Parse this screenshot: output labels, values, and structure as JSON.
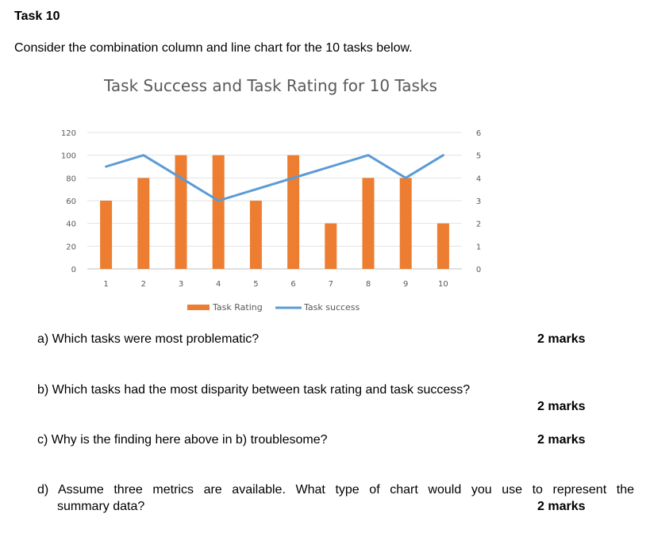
{
  "task_heading": "Task 10",
  "intro": "Consider the combination column and line chart for the 10 tasks below.",
  "chart_data": {
    "type": "bar+line",
    "title": "Task Success and Task Rating for 10 Tasks",
    "categories": [
      "1",
      "2",
      "3",
      "4",
      "5",
      "6",
      "7",
      "8",
      "9",
      "10"
    ],
    "series": [
      {
        "name": "Task Rating",
        "type": "bar",
        "axis": "left",
        "values": [
          60,
          80,
          100,
          100,
          60,
          100,
          40,
          80,
          80,
          40
        ],
        "color": "#ED7D31"
      },
      {
        "name": "Task success",
        "type": "line",
        "axis": "right",
        "values": [
          4.5,
          5,
          4,
          3,
          3.5,
          4,
          4.5,
          5,
          4,
          5
        ],
        "color": "#5B9BD5"
      }
    ],
    "left_axis": {
      "ylim": [
        0,
        120
      ],
      "ticks": [
        "0",
        "20",
        "40",
        "60",
        "80",
        "100",
        "120"
      ]
    },
    "right_axis": {
      "ylim": [
        0,
        6
      ],
      "ticks": [
        "0",
        "1",
        "2",
        "3",
        "4",
        "5",
        "6"
      ]
    },
    "grid": true,
    "legend": "bottom"
  },
  "questions": [
    {
      "text": "a) Which tasks were most problematic?",
      "marks": "2 marks"
    },
    {
      "text": "b) Which tasks had the most disparity between task rating and task success?",
      "marks": "2 marks"
    },
    {
      "text": "c) Why is the finding here above in b) troublesome?",
      "marks": "2 marks"
    },
    {
      "text": "d) Assume three metrics are available. What type of chart would you use to represent the",
      "text2": "summary data?",
      "marks": "2 marks"
    }
  ]
}
